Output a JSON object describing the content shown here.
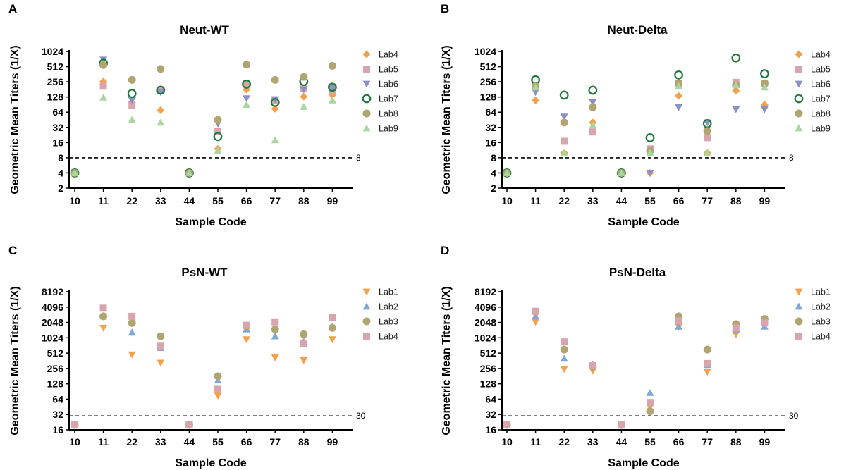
{
  "chart_data": [
    {
      "panel": "A",
      "title": "Neut-WT",
      "type": "scatter",
      "xlabel": "Sample Code",
      "ylabel": "Geometric Mean Titers  (1/X)",
      "y_scale": "log2",
      "ylim": [
        2,
        1024
      ],
      "yticks": [
        "2",
        "4",
        "8",
        "16",
        "32",
        "64",
        "128",
        "256",
        "512",
        "1024"
      ],
      "categories": [
        "10",
        "11",
        "22",
        "33",
        "44",
        "55",
        "66",
        "77",
        "88",
        "99"
      ],
      "threshold": {
        "value": 8,
        "label": "8"
      },
      "legend_position": "right",
      "series": [
        {
          "name": "Lab4",
          "marker": "diamond",
          "color": "#F5A04A",
          "values": [
            4,
            260,
            100,
            70,
            4,
            12,
            180,
            75,
            130,
            140
          ]
        },
        {
          "name": "Lab5",
          "marker": "square",
          "color": "#D9A5AC",
          "values": [
            4,
            210,
            88,
            170,
            4,
            27,
            240,
            110,
            190,
            170
          ]
        },
        {
          "name": "Lab6",
          "marker": "triangle-down",
          "color": "#8A90C8",
          "values": [
            4,
            700,
            110,
            160,
            4,
            38,
            120,
            115,
            180,
            190
          ]
        },
        {
          "name": "Lab7",
          "marker": "circle-open",
          "color": "#1E7A3C",
          "values": [
            4,
            600,
            150,
            175,
            4,
            21,
            230,
            100,
            260,
            200
          ]
        },
        {
          "name": "Lab8",
          "marker": "circle",
          "color": "#B0A470",
          "values": [
            4,
            550,
            280,
            460,
            4,
            45,
            560,
            280,
            320,
            530
          ]
        },
        {
          "name": "Lab9",
          "marker": "triangle-up",
          "color": "#A8D8A0",
          "values": [
            4,
            125,
            45,
            40,
            4,
            11,
            90,
            18,
            82,
            110
          ]
        }
      ]
    },
    {
      "panel": "B",
      "title": "Neut-Delta",
      "type": "scatter",
      "xlabel": "Sample Code",
      "ylabel": "Geometric Mean Titers  (1/X)",
      "y_scale": "log2",
      "ylim": [
        2,
        1024
      ],
      "yticks": [
        "2",
        "4",
        "8",
        "16",
        "32",
        "64",
        "128",
        "256",
        "512",
        "1024"
      ],
      "categories": [
        "10",
        "11",
        "22",
        "33",
        "44",
        "55",
        "66",
        "77",
        "88",
        "99"
      ],
      "threshold": {
        "value": 8,
        "label": "8"
      },
      "legend_position": "right",
      "series": [
        {
          "name": "Lab4",
          "marker": "diamond",
          "color": "#F5A04A",
          "values": [
            4,
            110,
            10,
            40,
            4,
            4,
            135,
            10,
            170,
            90
          ]
        },
        {
          "name": "Lab5",
          "marker": "square",
          "color": "#D9A5AC",
          "values": [
            4,
            210,
            17,
            26,
            4,
            12,
            240,
            20,
            250,
            240
          ]
        },
        {
          "name": "Lab6",
          "marker": "triangle-down",
          "color": "#8A90C8",
          "values": [
            4,
            160,
            52,
            100,
            4,
            4,
            80,
            40,
            73,
            73
          ]
        },
        {
          "name": "Lab7",
          "marker": "circle-open",
          "color": "#1E7A3C",
          "values": [
            4,
            280,
            140,
            175,
            4,
            20,
            350,
            38,
            760,
            370
          ]
        },
        {
          "name": "Lab8",
          "marker": "circle",
          "color": "#B0A470",
          "values": [
            4,
            210,
            40,
            80,
            4,
            11,
            240,
            27,
            220,
            240
          ]
        },
        {
          "name": "Lab9",
          "marker": "triangle-up",
          "color": "#A8D8A0",
          "values": [
            4,
            200,
            10,
            35,
            4,
            10,
            210,
            10,
            220,
            200
          ]
        }
      ]
    },
    {
      "panel": "C",
      "title": "PsN-WT",
      "type": "scatter",
      "xlabel": "Sample Code",
      "ylabel": "Geometric Mean Titers  (1/X)",
      "y_scale": "log2",
      "ylim": [
        16,
        8192
      ],
      "yticks": [
        "16",
        "32",
        "64",
        "128",
        "256",
        "512",
        "1024",
        "2048",
        "4096",
        "8192"
      ],
      "categories": [
        "10",
        "11",
        "22",
        "33",
        "44",
        "55",
        "66",
        "77",
        "88",
        "99"
      ],
      "threshold": {
        "value": 30,
        "label": "30"
      },
      "legend_position": "right",
      "series": [
        {
          "name": "Lab1",
          "marker": "triangle-down",
          "color": "#F5A04A",
          "values": [
            20,
            1600,
            480,
            330,
            20,
            75,
            950,
            420,
            370,
            950
          ]
        },
        {
          "name": "Lab2",
          "marker": "triangle-up",
          "color": "#7FA8DA",
          "values": [
            20,
            2700,
            1300,
            650,
            20,
            150,
            1500,
            1100,
            870,
            1700
          ]
        },
        {
          "name": "Lab3",
          "marker": "circle",
          "color": "#B0A470",
          "values": [
            20,
            2700,
            2000,
            1100,
            20,
            180,
            1700,
            1500,
            1200,
            1600
          ]
        },
        {
          "name": "Lab4",
          "marker": "square",
          "color": "#D9A5AC",
          "values": [
            20,
            3900,
            2700,
            700,
            20,
            100,
            1800,
            2100,
            800,
            2600
          ]
        }
      ]
    },
    {
      "panel": "D",
      "title": "PsN-Delta",
      "type": "scatter",
      "xlabel": "Sample Code",
      "ylabel": "Geometric Mean Titers  (1/X)",
      "y_scale": "log2",
      "ylim": [
        16,
        8192
      ],
      "yticks": [
        "16",
        "32",
        "64",
        "128",
        "256",
        "512",
        "1024",
        "2048",
        "4096",
        "8192"
      ],
      "categories": [
        "10",
        "11",
        "22",
        "33",
        "44",
        "55",
        "66",
        "77",
        "88",
        "99"
      ],
      "threshold": {
        "value": 30,
        "label": "30"
      },
      "legend_position": "right",
      "series": [
        {
          "name": "Lab1",
          "marker": "triangle-down",
          "color": "#F5A04A",
          "values": [
            20,
            2100,
            250,
            230,
            20,
            45,
            1700,
            220,
            1200,
            1800
          ]
        },
        {
          "name": "Lab2",
          "marker": "triangle-up",
          "color": "#7FA8DA",
          "values": [
            20,
            2700,
            400,
            300,
            20,
            85,
            1700,
            300,
            1500,
            1700
          ]
        },
        {
          "name": "Lab3",
          "marker": "circle",
          "color": "#B0A470",
          "values": [
            20,
            3300,
            600,
            280,
            20,
            37,
            2700,
            600,
            1900,
            2400
          ]
        },
        {
          "name": "Lab4",
          "marker": "square",
          "color": "#D9A5AC",
          "values": [
            20,
            3400,
            850,
            290,
            20,
            55,
            2200,
            320,
            1600,
            2000
          ]
        }
      ]
    }
  ]
}
